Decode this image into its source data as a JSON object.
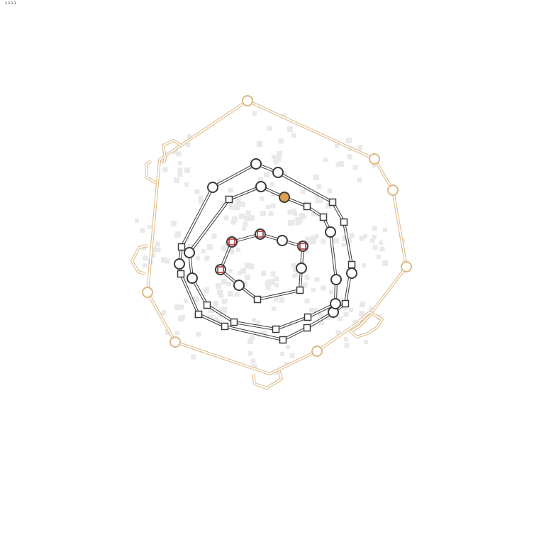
{
  "corner_label": "ıııı",
  "colors": {
    "background": "#ffffff",
    "outer_ring": "#dcb884",
    "node_stroke": "#3a3a3a",
    "node_fill": "#ffffff",
    "highlight_red": "#b22222",
    "highlight_orange": "#e0a050",
    "texture": "#e9e9e9"
  },
  "layers": [
    {
      "id": "outer-boundary",
      "shape": "double-line polygon with open-circle nodes and bracket notches"
    },
    {
      "id": "ring-2",
      "shape": "double-line loop with circle and square nodes"
    },
    {
      "id": "ring-1",
      "shape": "double-line loop with circle and square nodes"
    },
    {
      "id": "inner-loop",
      "shape": "double-line loop with highlighted nodes"
    },
    {
      "id": "background-texture",
      "shape": "faint grey scattered squares"
    }
  ]
}
